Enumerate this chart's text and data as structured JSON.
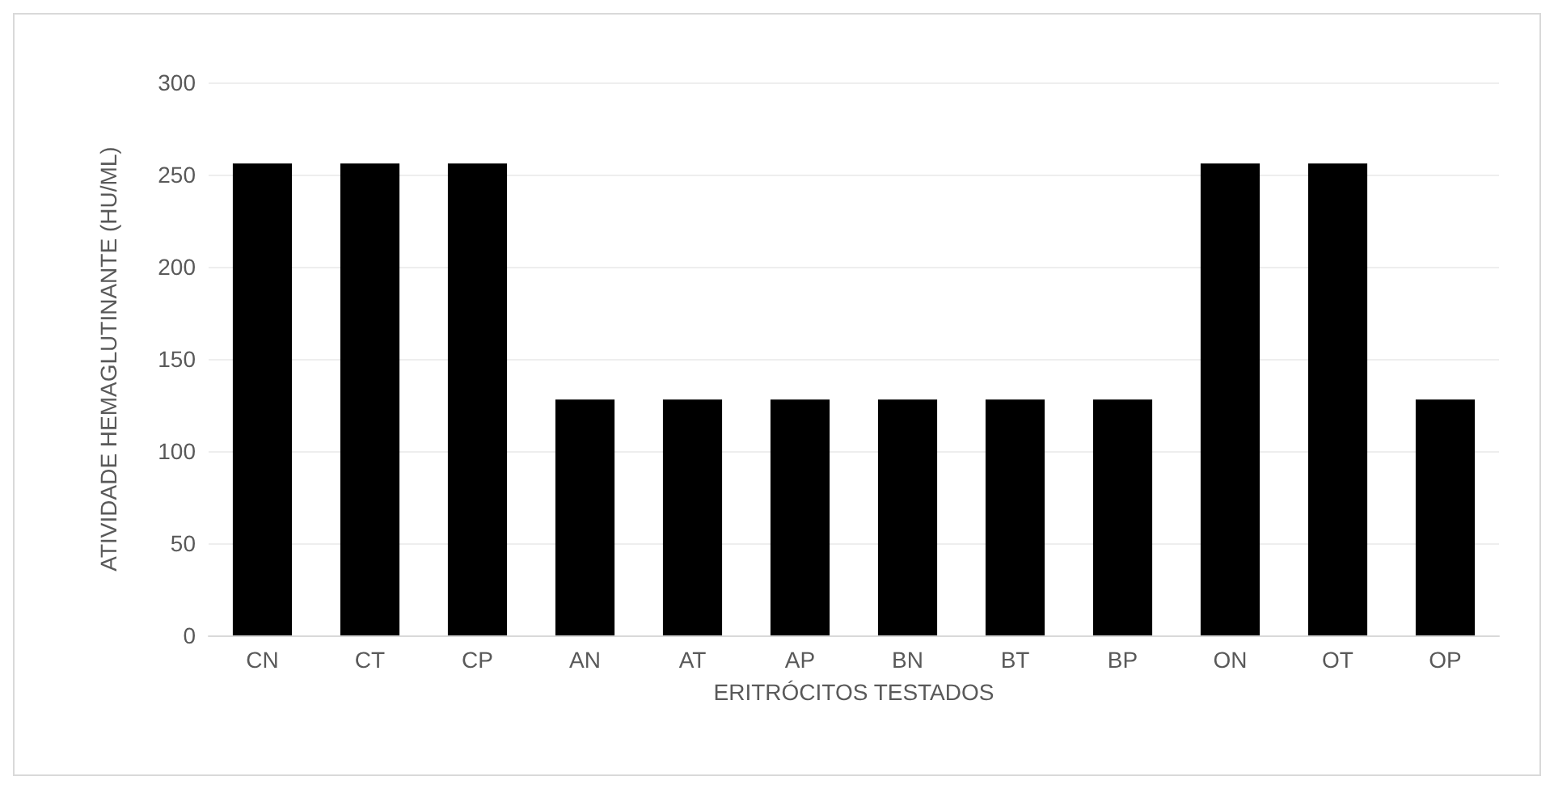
{
  "chart_data": {
    "type": "bar",
    "xlabel": "ERITRÓCITOS TESTADOS",
    "ylabel": "ATIVIDADE HEMAGLUTINANTE (HU/ML)",
    "categories": [
      "CN",
      "CT",
      "CP",
      "AN",
      "AT",
      "AP",
      "BN",
      "BT",
      "BP",
      "ON",
      "OT",
      "OP"
    ],
    "values": [
      256,
      256,
      256,
      128,
      128,
      128,
      128,
      128,
      128,
      256,
      256,
      128
    ],
    "color": "#000000",
    "ylim": [
      0,
      300
    ],
    "yticks": [
      0,
      50,
      100,
      150,
      200,
      250,
      300
    ],
    "grid": "y"
  }
}
